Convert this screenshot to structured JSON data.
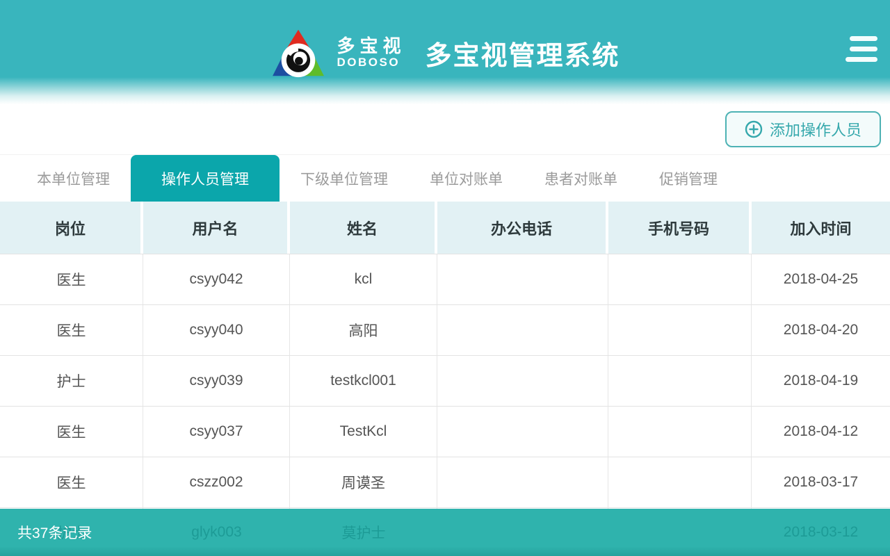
{
  "header": {
    "logo_text": "多宝视",
    "logo_subtext": "DOBOSO",
    "title": "多宝视管理系统"
  },
  "toolbar": {
    "add_button_label": "添加操作人员"
  },
  "tabs": [
    {
      "label": "本单位管理",
      "active": false
    },
    {
      "label": "操作人员管理",
      "active": true
    },
    {
      "label": "下级单位管理",
      "active": false
    },
    {
      "label": "单位对账单",
      "active": false
    },
    {
      "label": "患者对账单",
      "active": false
    },
    {
      "label": "促销管理",
      "active": false
    }
  ],
  "table": {
    "columns": [
      "岗位",
      "用户名",
      "姓名",
      "办公电话",
      "手机号码",
      "加入时间"
    ],
    "rows": [
      [
        "医生",
        "csyy042",
        "kcl",
        "",
        "",
        "2018-04-25"
      ],
      [
        "医生",
        "csyy040",
        "高阳",
        "",
        "",
        "2018-04-20"
      ],
      [
        "护士",
        "csyy039",
        "testkcl001",
        "",
        "",
        "2018-04-19"
      ],
      [
        "医生",
        "csyy037",
        "TestKcl",
        "",
        "",
        "2018-04-12"
      ],
      [
        "医生",
        "cszz002",
        "周谟圣",
        "",
        "",
        "2018-03-17"
      ],
      [
        "护士",
        "glyk003",
        "莫护士",
        "",
        "",
        "2018-03-12"
      ]
    ]
  },
  "footer": {
    "record_count": "共37条记录"
  },
  "colors": {
    "header_teal": "#39b5bd",
    "active_tab_teal": "#0ba6ab",
    "button_teal": "#35a8ac",
    "footer_overlay_teal": "#2fb3ad",
    "ghost_text_teal": "#1d9b96",
    "table_header_bg": "#e2f1f4",
    "row_border": "#e3e3e3",
    "cell_text": "#555555",
    "inactive_tab_text": "#9b9b9b",
    "logo_red": "#e02b20",
    "logo_blue": "#1c4fa1",
    "logo_green": "#5fbc2a"
  }
}
